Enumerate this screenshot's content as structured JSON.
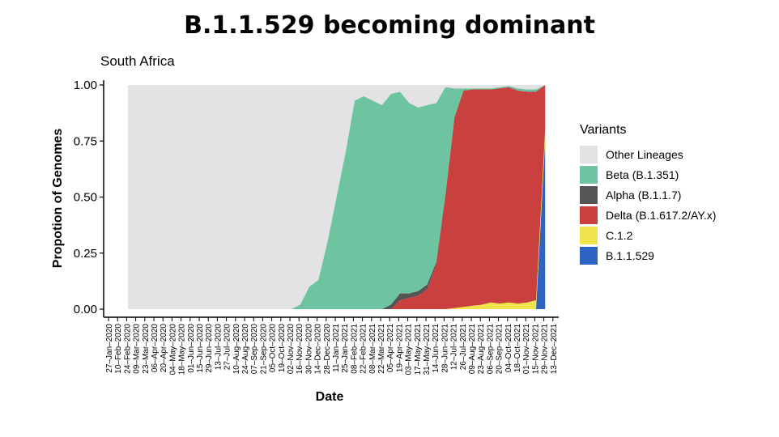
{
  "page_title": "B.1.1.529 becoming dominant",
  "chart_data": {
    "type": "area",
    "stacked": "fill",
    "title": "South Africa",
    "xlabel": "Date",
    "ylabel": "Propotion of Genomes",
    "ylim": [
      0,
      1
    ],
    "y_ticks": [
      "0.00",
      "0.25",
      "0.50",
      "0.75",
      "1.00"
    ],
    "x_ticks": [
      "27–Jan–2020",
      "10–Feb–2020",
      "24–Feb–2020",
      "09–Mar–2020",
      "23–Mar–2020",
      "06–Apr–2020",
      "20–Apr–2020",
      "04–May–2020",
      "18–May–2020",
      "01–Jun–2020",
      "15–Jun–2020",
      "29–Jun–2020",
      "13–Jul–2020",
      "27–Jul–2020",
      "10–Aug–2020",
      "24–Aug–2020",
      "07–Sep–2020",
      "21–Sep–2020",
      "05–Oct–2020",
      "19–Oct–2020",
      "02–Nov–2020",
      "16–Nov–2020",
      "30–Nov–2020",
      "14–Dec–2020",
      "28–Dec–2020",
      "11–Jan–2021",
      "25–Jan–2021",
      "08–Feb–2021",
      "22–Feb–2021",
      "08–Mar–2021",
      "22–Mar–2021",
      "05–Apr–2021",
      "19–Apr–2021",
      "03–May–2021",
      "17–May–2021",
      "31–May–2021",
      "14–Jun–2021",
      "28–Jun–2021",
      "12–Jul–2021",
      "26–Jul–2021",
      "09–Aug–2021",
      "23–Aug–2021",
      "06–Sep–2021",
      "20–Sep–2021",
      "04–Oct–2021",
      "18–Oct–2021",
      "01–Nov–2021",
      "15–Nov–2021",
      "29–Nov–2021",
      "13–Dec–2021"
    ],
    "x_start": "2020-02-03",
    "x_step_weeks": 2,
    "legend": {
      "title": "Variants",
      "position": "right",
      "entries": [
        {
          "name": "Other Lineages",
          "color": "#e3e3e5"
        },
        {
          "name": "Beta (B.1.351)",
          "color": "#6ec4a1"
        },
        {
          "name": "Alpha (B.1.1.7)",
          "color": "#555555"
        },
        {
          "name": "Delta (B.1.617.2/AY.x)",
          "color": "#c9403f"
        },
        {
          "name": "C.1.2",
          "color": "#f1e34a"
        },
        {
          "name": "B.1.1.529",
          "color": "#2e63c2"
        }
      ]
    },
    "stack_order_bottom_to_top": [
      "B.1.1.529",
      "C.1.2",
      "Delta (B.1.617.2/AY.x)",
      "Alpha (B.1.1.7)",
      "Beta (B.1.351)",
      "Other Lineages"
    ],
    "series": [
      {
        "name": "B.1.1.529",
        "values": [
          0,
          0,
          0,
          0,
          0,
          0,
          0,
          0,
          0,
          0,
          0,
          0,
          0,
          0,
          0,
          0,
          0,
          0,
          0,
          0,
          0,
          0,
          0,
          0,
          0,
          0,
          0,
          0,
          0,
          0,
          0,
          0,
          0,
          0,
          0,
          0,
          0,
          0,
          0,
          0,
          0,
          0,
          0,
          0,
          0,
          0,
          0.75
        ]
      },
      {
        "name": "C.1.2",
        "values": [
          0,
          0,
          0,
          0,
          0,
          0,
          0,
          0,
          0,
          0,
          0,
          0,
          0,
          0,
          0,
          0,
          0,
          0,
          0,
          0,
          0,
          0,
          0,
          0,
          0,
          0,
          0,
          0,
          0,
          0,
          0,
          0,
          0,
          0,
          0,
          0,
          0.005,
          0.01,
          0.015,
          0.02,
          0.03,
          0.025,
          0.03,
          0.025,
          0.03,
          0.04,
          0.05
        ]
      },
      {
        "name": "Delta (B.1.617.2/AY.x)",
        "values": [
          0,
          0,
          0,
          0,
          0,
          0,
          0,
          0,
          0,
          0,
          0,
          0,
          0,
          0,
          0,
          0,
          0,
          0,
          0,
          0,
          0,
          0,
          0,
          0,
          0,
          0,
          0,
          0,
          0,
          0,
          0.04,
          0.05,
          0.06,
          0.09,
          0.2,
          0.5,
          0.85,
          0.965,
          0.965,
          0.96,
          0.95,
          0.96,
          0.96,
          0.95,
          0.94,
          0.93,
          0.23
        ]
      },
      {
        "name": "Alpha (B.1.1.7)",
        "values": [
          0,
          0,
          0,
          0,
          0,
          0,
          0,
          0,
          0,
          0,
          0,
          0,
          0,
          0,
          0,
          0,
          0,
          0,
          0,
          0,
          0,
          0,
          0,
          0,
          0,
          0,
          0,
          0,
          0,
          0.02,
          0.03,
          0.02,
          0.02,
          0.02,
          0.01,
          0.01,
          0,
          0,
          0,
          0,
          0,
          0,
          0,
          0,
          0,
          0,
          0
        ]
      },
      {
        "name": "Beta (B.1.351)",
        "values": [
          0,
          0,
          0,
          0,
          0,
          0,
          0,
          0,
          0,
          0,
          0,
          0,
          0,
          0,
          0,
          0,
          0,
          0,
          0,
          0.02,
          0.1,
          0.13,
          0.3,
          0.5,
          0.7,
          0.93,
          0.95,
          0.93,
          0.91,
          0.94,
          0.9,
          0.85,
          0.82,
          0.8,
          0.71,
          0.48,
          0.13,
          0.01,
          0.005,
          0.005,
          0.005,
          0.005,
          0.005,
          0.01,
          0.01,
          0.01,
          0
        ]
      },
      {
        "name": "Other Lineages",
        "values": [
          1,
          1,
          1,
          1,
          1,
          1,
          1,
          1,
          1,
          1,
          1,
          1,
          1,
          1,
          1,
          1,
          1,
          1,
          1,
          0.98,
          0.9,
          0.87,
          0.7,
          0.5,
          0.3,
          0.07,
          0.05,
          0.07,
          0.09,
          0.04,
          0.03,
          0.08,
          0.1,
          0.09,
          0.08,
          0.01,
          0.015,
          0.015,
          0.015,
          0.015,
          0.015,
          0.01,
          0.005,
          0.015,
          0.02,
          0.02,
          0.02
        ]
      }
    ]
  }
}
